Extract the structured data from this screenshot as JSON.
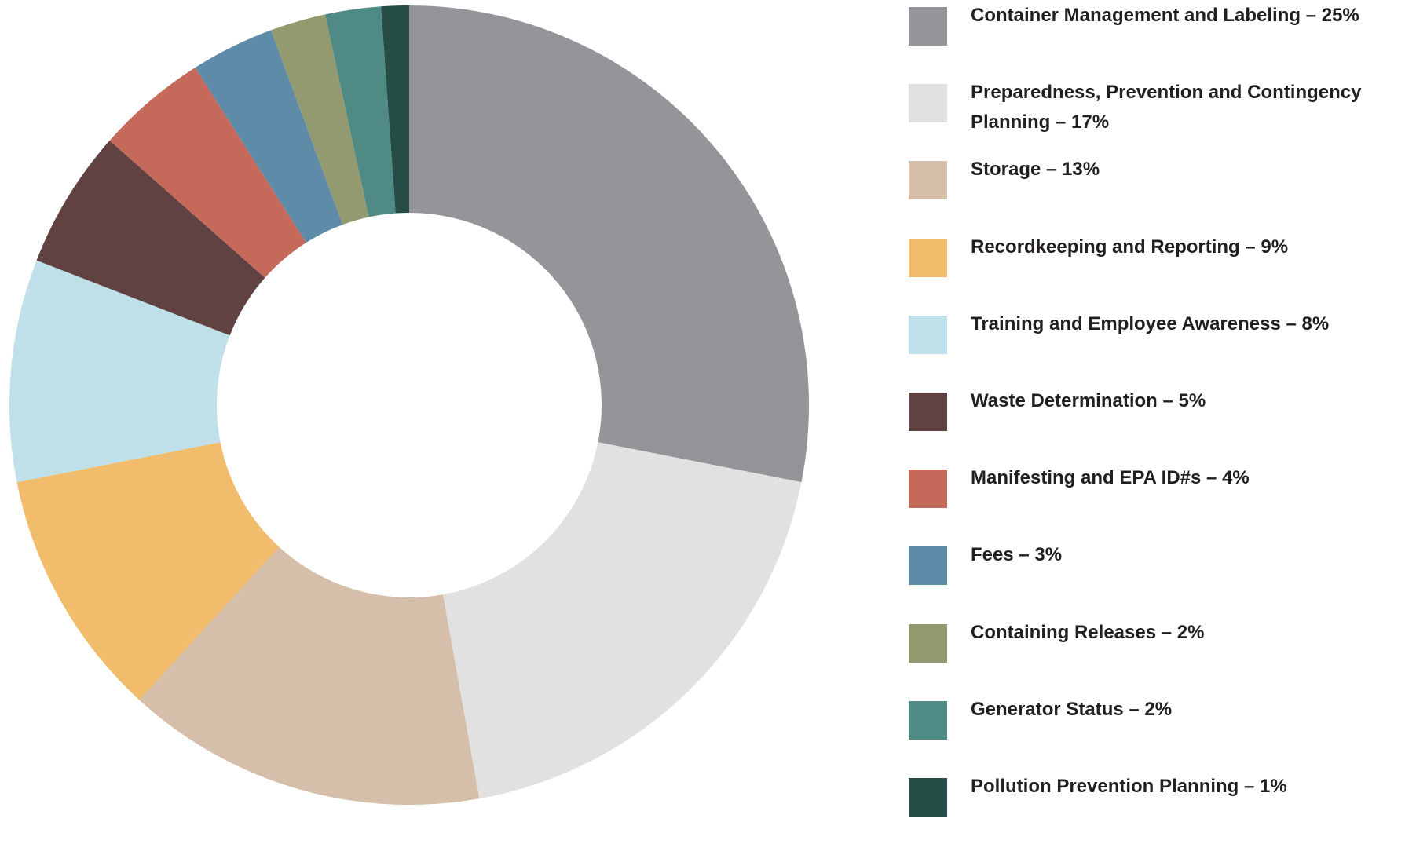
{
  "chart_data": {
    "type": "pie",
    "categories": [
      "Container Management and Labeling – 25%",
      "Preparedness, Prevention and Contingency Planning – 17%",
      "Storage – 13%",
      "Recordkeeping and Reporting – 9%",
      "Training and Employee Awareness – 8%",
      "Waste Determination – 5%",
      "Manifesting and EPA ID#s – 4%",
      "Fees – 3%",
      "Containing Releases – 2%",
      "Generator Status – 2%",
      "Pollution Prevention Planning – 1%"
    ],
    "values": [
      25,
      17,
      13,
      9,
      8,
      5,
      4,
      3,
      2,
      2,
      1
    ],
    "colors": [
      "#939598",
      "#e1e1e1",
      "#d5bfaa",
      "#f1bd6c",
      "#bfe0e8",
      "#614242",
      "#c5695b",
      "#5e8ba8",
      "#939a6f",
      "#4f8b84",
      "#254c45"
    ],
    "donut": true,
    "legend": "right"
  }
}
